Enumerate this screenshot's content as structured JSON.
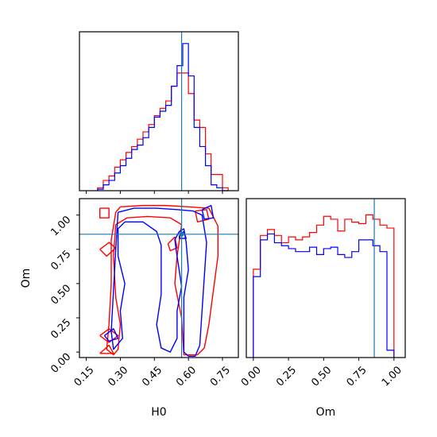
{
  "chart_data": {
    "type": "corner",
    "parameters": [
      "H0",
      "Om"
    ],
    "truth": {
      "H0": 0.57,
      "Om": 0.86
    },
    "colors": {
      "series_a": "#ff0000",
      "series_b": "#0000ff",
      "truth": "#1f77b4"
    },
    "panels": [
      {
        "id": "h0-marginal",
        "type": "histogram",
        "xlim": [
          0.12,
          0.82
        ],
        "ylim": [
          0,
          1.08
        ],
        "bin_edges": [
          0.2,
          0.225,
          0.25,
          0.275,
          0.3,
          0.325,
          0.35,
          0.375,
          0.4,
          0.425,
          0.45,
          0.475,
          0.5,
          0.525,
          0.55,
          0.575,
          0.6,
          0.625,
          0.65,
          0.675,
          0.7,
          0.725,
          0.75,
          0.775
        ],
        "series": [
          {
            "color": "red",
            "values": [
              0.02,
              0.07,
              0.1,
              0.16,
              0.21,
              0.26,
              0.3,
              0.35,
              0.4,
              0.45,
              0.51,
              0.56,
              0.61,
              0.71,
              0.8,
              0.8,
              0.66,
              0.48,
              0.43,
              0.25,
              0.11,
              0.11,
              0.02
            ]
          },
          {
            "color": "blue",
            "values": [
              0.01,
              0.04,
              0.07,
              0.12,
              0.17,
              0.22,
              0.28,
              0.31,
              0.36,
              0.43,
              0.5,
              0.54,
              0.58,
              0.71,
              0.85,
              1.0,
              0.78,
              0.43,
              0.3,
              0.17,
              0.04,
              0.02,
              0.0
            ]
          }
        ]
      },
      {
        "id": "joint",
        "type": "contour",
        "xlim": [
          0.12,
          0.82
        ],
        "ylim": [
          -0.04,
          1.12
        ],
        "xticks": [
          "0.15",
          "0.30",
          "0.45",
          "0.60",
          "0.75"
        ],
        "xtick_values": [
          0.15,
          0.3,
          0.45,
          0.6,
          0.75
        ],
        "yticks": [
          "0.00",
          "0.25",
          "0.50",
          "0.75",
          "1.00"
        ],
        "ytick_values": [
          0.0,
          0.25,
          0.5,
          0.75,
          1.0
        ],
        "xlabel": "H0",
        "ylabel": "Om",
        "series": [
          {
            "color": "red",
            "contours": [
              [
                [
                  0.3,
                  1.06
                ],
                [
                  0.4,
                  1.07
                ],
                [
                  0.5,
                  1.07
                ],
                [
                  0.6,
                  1.06
                ],
                [
                  0.69,
                  1.05
                ],
                [
                  0.73,
                  0.92
                ],
                [
                  0.73,
                  0.7
                ],
                [
                  0.71,
                  0.45
                ],
                [
                  0.69,
                  0.2
                ],
                [
                  0.67,
                  0.03
                ],
                [
                  0.64,
                  -0.02
                ],
                [
                  0.58,
                  -0.02
                ],
                [
                  0.57,
                  0.25
                ],
                [
                  0.54,
                  0.5
                ],
                [
                  0.55,
                  0.7
                ],
                [
                  0.57,
                  0.93
                ],
                [
                  0.52,
                  0.98
                ],
                [
                  0.42,
                  0.99
                ],
                [
                  0.33,
                  0.98
                ],
                [
                  0.28,
                  0.93
                ],
                [
                  0.27,
                  0.7
                ],
                [
                  0.28,
                  0.4
                ],
                [
                  0.3,
                  0.2
                ],
                [
                  0.29,
                  0.02
                ],
                [
                  0.27,
                  -0.02
                ],
                [
                  0.24,
                  0.02
                ],
                [
                  0.25,
                  0.2
                ],
                [
                  0.26,
                  0.5
                ],
                [
                  0.26,
                  0.82
                ],
                [
                  0.28,
                  1.02
                ],
                [
                  0.3,
                  1.06
                ]
              ],
              [
                [
                  0.21,
                  1.05
                ],
                [
                  0.25,
                  1.05
                ],
                [
                  0.25,
                  0.98
                ],
                [
                  0.21,
                  0.98
                ],
                [
                  0.21,
                  1.05
                ]
              ],
              [
                [
                  0.21,
                  0.75
                ],
                [
                  0.25,
                  0.8
                ],
                [
                  0.28,
                  0.76
                ],
                [
                  0.24,
                  0.7
                ],
                [
                  0.21,
                  0.75
                ]
              ],
              [
                [
                  0.21,
                  0.12
                ],
                [
                  0.25,
                  0.17
                ],
                [
                  0.29,
                  0.12
                ],
                [
                  0.25,
                  0.07
                ],
                [
                  0.21,
                  0.12
                ]
              ],
              [
                [
                  0.21,
                  -0.01
                ],
                [
                  0.25,
                  0.05
                ],
                [
                  0.27,
                  -0.01
                ],
                [
                  0.21,
                  -0.01
                ]
              ],
              [
                [
                  0.63,
                  1.03
                ],
                [
                  0.68,
                  1.04
                ],
                [
                  0.69,
                  0.97
                ],
                [
                  0.64,
                  0.95
                ],
                [
                  0.63,
                  1.03
                ]
              ],
              [
                [
                  0.51,
                  0.79
                ],
                [
                  0.54,
                  0.84
                ],
                [
                  0.55,
                  0.76
                ],
                [
                  0.52,
                  0.74
                ],
                [
                  0.51,
                  0.79
                ]
              ]
            ]
          },
          {
            "color": "blue",
            "contours": [
              [
                [
                  0.29,
                  1.02
                ],
                [
                  0.36,
                  1.05
                ],
                [
                  0.46,
                  1.05
                ],
                [
                  0.55,
                  1.04
                ],
                [
                  0.62,
                  1.03
                ],
                [
                  0.66,
                  1.0
                ],
                [
                  0.68,
                  0.8
                ],
                [
                  0.67,
                  0.55
                ],
                [
                  0.66,
                  0.3
                ],
                [
                  0.65,
                  0.05
                ],
                [
                  0.63,
                  -0.03
                ],
                [
                  0.6,
                  -0.03
                ],
                [
                  0.58,
                  0.0
                ],
                [
                  0.58,
                  0.2
                ],
                [
                  0.58,
                  0.4
                ],
                [
                  0.6,
                  0.6
                ],
                [
                  0.59,
                  0.8
                ],
                [
                  0.58,
                  0.9
                ],
                [
                  0.56,
                  0.88
                ],
                [
                  0.54,
                  0.82
                ],
                [
                  0.55,
                  0.7
                ],
                [
                  0.57,
                  0.48
                ],
                [
                  0.55,
                  0.3
                ],
                [
                  0.55,
                  0.1
                ],
                [
                  0.52,
                  0.0
                ],
                [
                  0.48,
                  0.03
                ],
                [
                  0.46,
                  0.2
                ],
                [
                  0.48,
                  0.42
                ],
                [
                  0.48,
                  0.6
                ],
                [
                  0.48,
                  0.78
                ],
                [
                  0.46,
                  0.88
                ],
                [
                  0.4,
                  0.95
                ],
                [
                  0.32,
                  0.95
                ],
                [
                  0.29,
                  0.9
                ],
                [
                  0.29,
                  0.7
                ],
                [
                  0.32,
                  0.5
                ],
                [
                  0.3,
                  0.3
                ],
                [
                  0.31,
                  0.1
                ],
                [
                  0.27,
                  0.02
                ],
                [
                  0.26,
                  0.15
                ],
                [
                  0.27,
                  0.45
                ],
                [
                  0.28,
                  0.75
                ],
                [
                  0.29,
                  1.02
                ]
              ],
              [
                [
                  0.66,
                  1.04
                ],
                [
                  0.7,
                  1.07
                ],
                [
                  0.71,
                  0.98
                ],
                [
                  0.67,
                  0.97
                ],
                [
                  0.66,
                  1.04
                ]
              ],
              [
                [
                  0.56,
                  0.85
                ],
                [
                  0.58,
                  0.88
                ],
                [
                  0.59,
                  0.83
                ],
                [
                  0.56,
                  0.83
                ],
                [
                  0.56,
                  0.85
                ]
              ],
              [
                [
                  0.23,
                  0.12
                ],
                [
                  0.27,
                  0.17
                ],
                [
                  0.29,
                  0.1
                ],
                [
                  0.25,
                  0.08
                ],
                [
                  0.23,
                  0.12
                ]
              ]
            ]
          }
        ]
      },
      {
        "id": "om-marginal",
        "type": "histogram",
        "xlim": [
          -0.05,
          1.08
        ],
        "ylim": [
          0,
          1.08
        ],
        "xticks": [
          "0.00",
          "0.25",
          "0.50",
          "0.75",
          "1.00"
        ],
        "xtick_values": [
          0.0,
          0.25,
          0.5,
          0.75,
          1.0
        ],
        "xlabel": "Om",
        "bin_edges": [
          0.0,
          0.05,
          0.1,
          0.15,
          0.2,
          0.25,
          0.3,
          0.35,
          0.4,
          0.45,
          0.5,
          0.55,
          0.6,
          0.65,
          0.7,
          0.75,
          0.8,
          0.85,
          0.9,
          0.95,
          1.0
        ],
        "series": [
          {
            "color": "red",
            "values": [
              0.6,
              0.83,
              0.87,
              0.83,
              0.78,
              0.82,
              0.8,
              0.82,
              0.85,
              0.9,
              0.96,
              0.94,
              0.86,
              0.94,
              0.92,
              0.91,
              0.97,
              0.94,
              0.9,
              0.88
            ]
          },
          {
            "color": "blue",
            "values": [
              0.55,
              0.8,
              0.84,
              0.78,
              0.76,
              0.74,
              0.72,
              0.72,
              0.75,
              0.7,
              0.74,
              0.75,
              0.7,
              0.68,
              0.72,
              0.8,
              0.8,
              0.76,
              0.72,
              0.05
            ]
          }
        ]
      }
    ]
  }
}
